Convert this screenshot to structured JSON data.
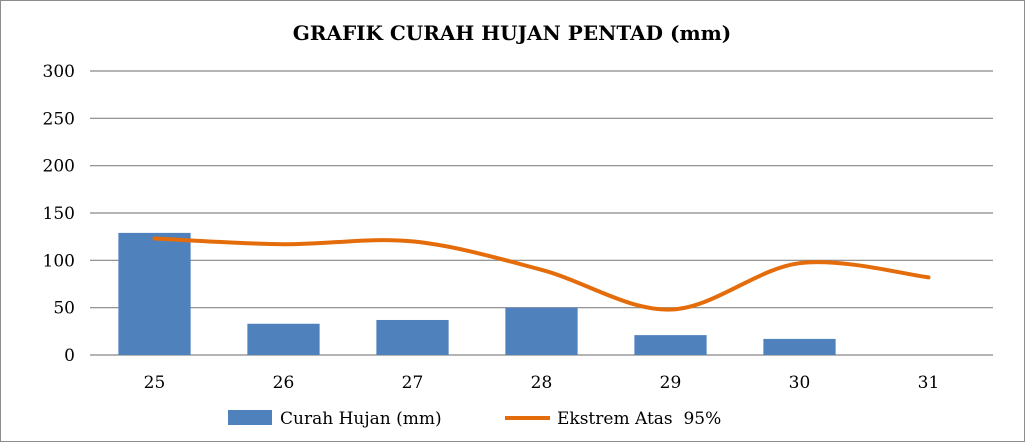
{
  "chart_data": {
    "type": "bar",
    "title": "GRAFIK CURAH HUJAN PENTAD (mm)",
    "xlabel": "",
    "ylabel": "",
    "categories": [
      "25",
      "26",
      "27",
      "28",
      "29",
      "30",
      "31"
    ],
    "ylim": [
      0,
      300
    ],
    "yticks": [
      "0",
      "50",
      "100",
      "150",
      "200",
      "250",
      "300"
    ],
    "grid": true,
    "legend_position": "bottom",
    "series": [
      {
        "name": "Curah Hujan (mm)",
        "type": "bar",
        "color": "#4f81bd",
        "values": [
          129,
          33,
          37,
          50,
          21,
          17,
          0
        ]
      },
      {
        "name": "Ekstrem Atas  95%",
        "type": "line",
        "smooth": true,
        "color": "#e46c0a",
        "values": [
          123,
          117,
          120,
          90,
          48,
          97,
          82
        ]
      }
    ]
  }
}
